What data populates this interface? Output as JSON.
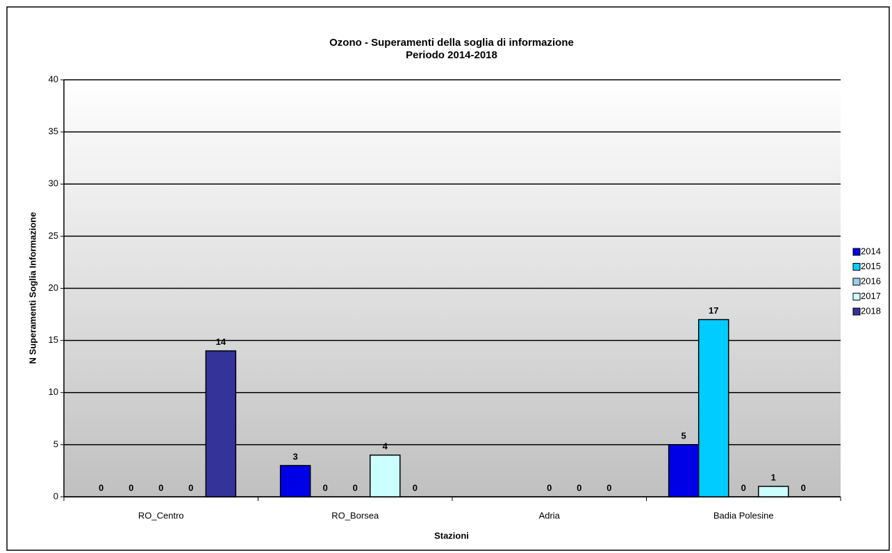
{
  "chart_data": {
    "type": "bar",
    "title": "Ozono - Superamenti della soglia di informazione",
    "subtitle": "Periodo 2014-2018",
    "x_label": "Stazioni",
    "y_label": "N Superamenti Soglia Informazione",
    "categories": [
      "RO_Centro",
      "RO_Borsea",
      "Adria",
      "Badia Polesine"
    ],
    "series": [
      {
        "name": "2014",
        "color": "#0000e6",
        "values": [
          0,
          3,
          null,
          5
        ]
      },
      {
        "name": "2015",
        "color": "#00ccff",
        "values": [
          0,
          0,
          null,
          17
        ]
      },
      {
        "name": "2016",
        "color": "#99ccee",
        "values": [
          0,
          0,
          0,
          0
        ]
      },
      {
        "name": "2017",
        "color": "#ccffff",
        "values": [
          0,
          4,
          0,
          1
        ]
      },
      {
        "name": "2018",
        "color": "#333399",
        "values": [
          14,
          0,
          0,
          0
        ]
      }
    ],
    "ylim": [
      0,
      40
    ],
    "yticks": [
      0,
      5,
      10,
      15,
      20,
      25,
      30,
      35,
      40
    ],
    "grid": true,
    "legend": "right"
  }
}
